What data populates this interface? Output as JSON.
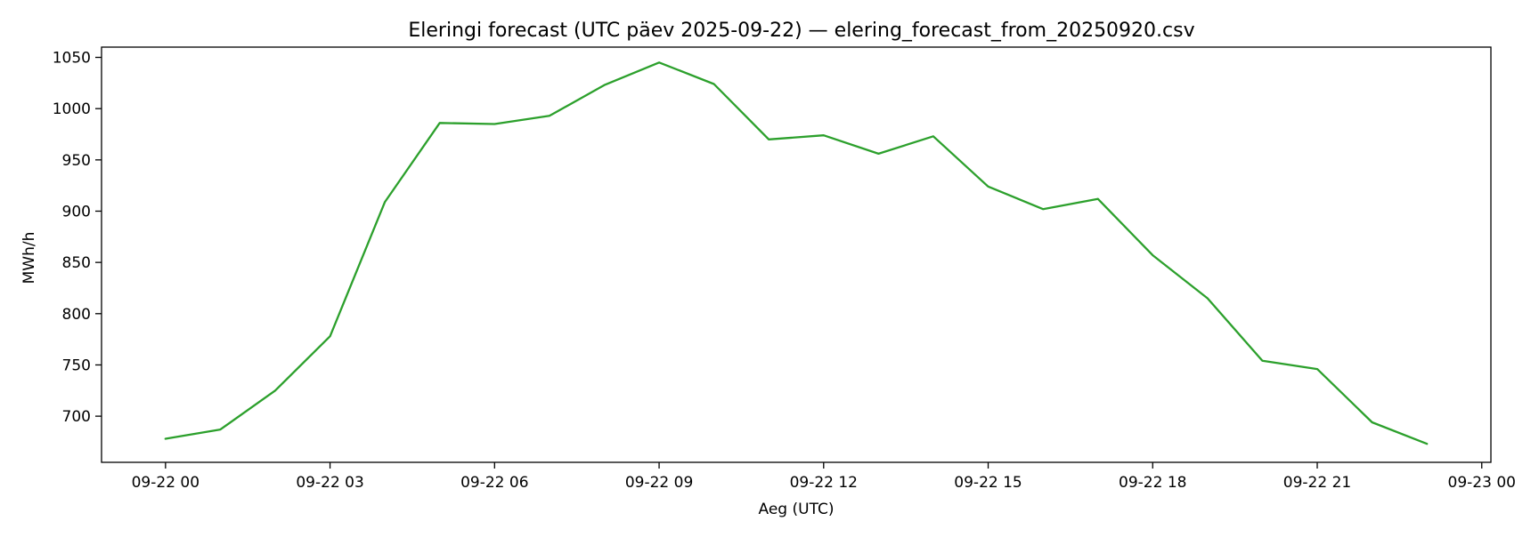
{
  "chart_data": {
    "type": "line",
    "title": "Eleringi forecast (UTC päev 2025-09-22) — elering_forecast_from_20250920.csv",
    "xlabel": "Aeg (UTC)",
    "ylabel": "MWh/h",
    "xlim": [
      "2025-09-21 22:50",
      "2025-09-23 00:10"
    ],
    "ylim": [
      655,
      1060
    ],
    "grid": false,
    "x_ticks": [
      "09-22 00",
      "09-22 03",
      "09-22 06",
      "09-22 09",
      "09-22 12",
      "09-22 15",
      "09-22 18",
      "09-22 21",
      "09-23 00"
    ],
    "y_ticks": [
      700,
      750,
      800,
      850,
      900,
      950,
      1000,
      1050
    ],
    "series": [
      {
        "color": "#2ca02c",
        "x": [
          "2025-09-22 00:00",
          "2025-09-22 01:00",
          "2025-09-22 02:00",
          "2025-09-22 03:00",
          "2025-09-22 04:00",
          "2025-09-22 05:00",
          "2025-09-22 06:00",
          "2025-09-22 07:00",
          "2025-09-22 08:00",
          "2025-09-22 09:00",
          "2025-09-22 10:00",
          "2025-09-22 11:00",
          "2025-09-22 12:00",
          "2025-09-22 13:00",
          "2025-09-22 14:00",
          "2025-09-22 15:00",
          "2025-09-22 16:00",
          "2025-09-22 17:00",
          "2025-09-22 18:00",
          "2025-09-22 19:00",
          "2025-09-22 20:00",
          "2025-09-22 21:00",
          "2025-09-22 22:00",
          "2025-09-22 23:00"
        ],
        "values": [
          678,
          687,
          725,
          778,
          909,
          986,
          985,
          993,
          1023,
          1045,
          1024,
          970,
          974,
          956,
          973,
          924,
          902,
          912,
          857,
          815,
          754,
          746,
          694,
          673
        ]
      }
    ]
  }
}
